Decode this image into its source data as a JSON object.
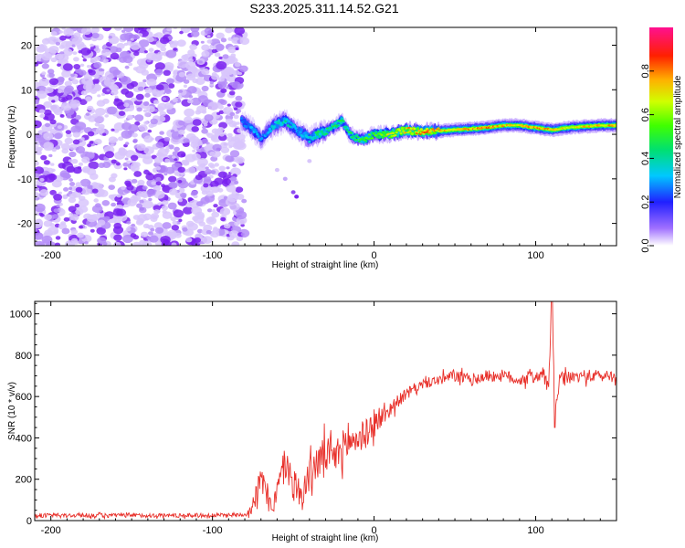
{
  "title": "S233.2025.311.14.52.G21",
  "colors": {
    "snr_line": "#e8302a",
    "axes": "#000000"
  },
  "chart_data": [
    {
      "type": "heatmap",
      "title": "S233.2025.311.14.52.G21",
      "xlabel": "Height of straight line (km)",
      "ylabel": "Frequency (Hz)",
      "xlim": [
        -210,
        150
      ],
      "ylim": [
        -25,
        24
      ],
      "xticks": [
        -200,
        -100,
        0,
        100
      ],
      "xtick_labels": [
        "-200",
        "-100",
        "0",
        "100"
      ],
      "yticks": [
        -20,
        -10,
        0,
        10,
        20
      ],
      "ytick_labels": [
        "-20",
        "-10",
        "0",
        "10",
        "20"
      ],
      "noise_region_x": [
        -210,
        -80
      ],
      "signal_ridge": {
        "x": [
          -82,
          -75,
          -70,
          -62,
          -55,
          -48,
          -40,
          -35,
          -28,
          -20,
          -15,
          -10,
          -5,
          0,
          10,
          20,
          30,
          50,
          70,
          80,
          90,
          100,
          110,
          120,
          140,
          150
        ],
        "freq": [
          3,
          1,
          -1,
          2,
          3,
          1,
          -1,
          0,
          1,
          3,
          0,
          -1,
          -1,
          0,
          0,
          1,
          0.5,
          1,
          1.5,
          2,
          2,
          1.5,
          1,
          1.5,
          2,
          2
        ],
        "amplitude": [
          0.3,
          0.35,
          0.3,
          0.4,
          0.45,
          0.35,
          0.4,
          0.5,
          0.5,
          0.55,
          0.5,
          0.55,
          0.6,
          0.6,
          0.75,
          0.85,
          0.9,
          0.85,
          0.9,
          0.85,
          0.8,
          0.9,
          0.85,
          0.8,
          0.85,
          0.85
        ]
      },
      "colorbar": {
        "label": "Normalized spectral amplitude",
        "range": [
          0,
          1
        ],
        "ticks": [
          0.0,
          0.2,
          0.4,
          0.6,
          0.8
        ],
        "tick_labels": [
          "0.0",
          "0.2",
          "0.4",
          "0.6",
          "0.8"
        ]
      }
    },
    {
      "type": "line",
      "xlabel": "Height of straight line (km)",
      "ylabel": "SNR (10 * v/v)",
      "xlim": [
        -210,
        150
      ],
      "ylim": [
        0,
        1060
      ],
      "xticks": [
        -200,
        -100,
        0,
        100
      ],
      "xtick_labels": [
        "-200",
        "-100",
        "0",
        "100"
      ],
      "yticks": [
        0,
        200,
        400,
        600,
        800,
        1000
      ],
      "ytick_labels": [
        "0",
        "200",
        "400",
        "600",
        "800",
        "1000"
      ],
      "series": [
        {
          "name": "SNR",
          "x": [
            -210,
            -150,
            -100,
            -80,
            -76,
            -72,
            -70,
            -66,
            -62,
            -58,
            -55,
            -50,
            -45,
            -40,
            -35,
            -30,
            -25,
            -20,
            -15,
            -10,
            -5,
            0,
            5,
            10,
            15,
            20,
            25,
            30,
            40,
            50,
            60,
            70,
            80,
            90,
            100,
            105,
            108,
            110,
            112,
            115,
            120,
            130,
            140,
            150
          ],
          "y": [
            25,
            25,
            25,
            30,
            60,
            150,
            200,
            120,
            80,
            200,
            280,
            180,
            120,
            220,
            280,
            320,
            300,
            350,
            380,
            400,
            420,
            460,
            500,
            540,
            580,
            610,
            640,
            660,
            680,
            700,
            680,
            700,
            700,
            680,
            700,
            700,
            640,
            1060,
            540,
            680,
            690,
            700,
            700,
            700
          ],
          "noise_amplitude": [
            20,
            20,
            20,
            20,
            60,
            120,
            140,
            120,
            100,
            150,
            180,
            170,
            160,
            170,
            180,
            180,
            180,
            170,
            160,
            150,
            140,
            120,
            100,
            80,
            60,
            60,
            50,
            50,
            50,
            60,
            60,
            60,
            60,
            60,
            70,
            70,
            80,
            0,
            0,
            80,
            60,
            60,
            60,
            60
          ]
        }
      ]
    }
  ]
}
